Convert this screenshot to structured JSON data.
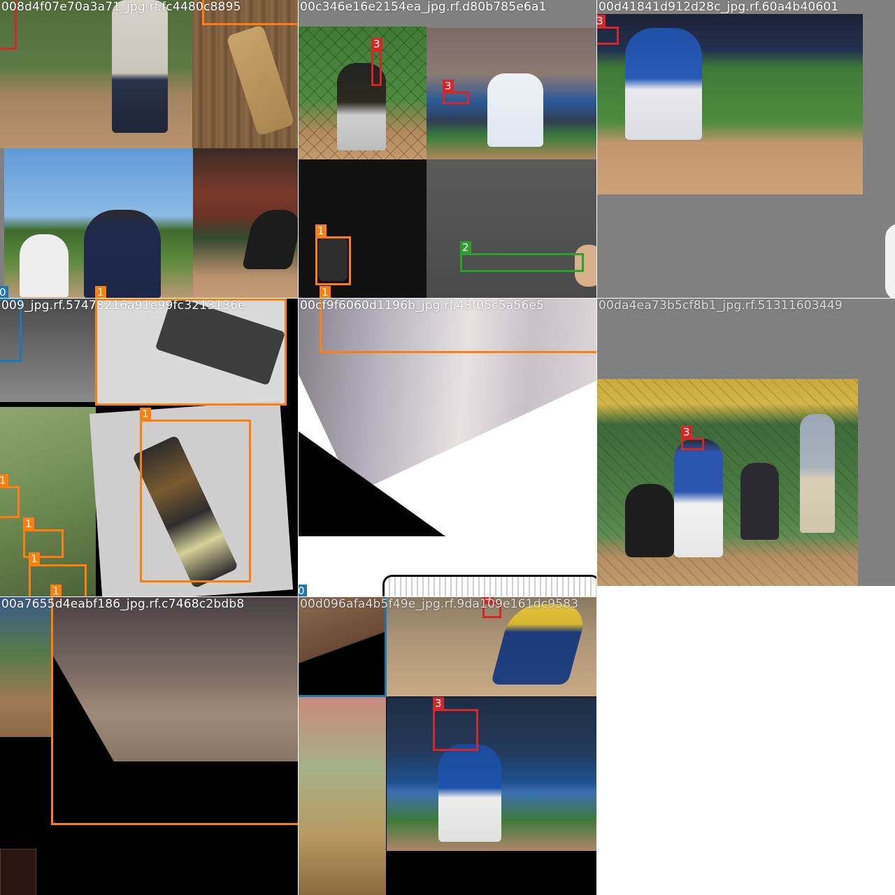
{
  "class_colors": {
    "0": "#1f77b4",
    "1": "#ff7f0e",
    "2": "#2ca02c",
    "3": "#d62728"
  },
  "tiles": [
    {
      "id": "tile-1",
      "label": "008d4f07e70a3a71_jpg.rf.fc4480c8895",
      "scene": "mosaic: baseball player legs, wooden board with strap, batter and catcher on field, umpire",
      "boxes": [
        {
          "cls": "3",
          "name": "bbox-class-3",
          "show_label": false
        },
        {
          "cls": "1",
          "name": "bbox-class-1",
          "show_label": false
        },
        {
          "cls": "0",
          "name": "bbox-class-0",
          "show_label": true
        },
        {
          "cls": "1",
          "name": "bbox-class-1-b",
          "show_label": true
        }
      ]
    },
    {
      "id": "tile-2",
      "label": "00c346e16e2154ea_jpg.rf.d80b785e6a1",
      "scene": "mosaic: batter behind net, kneeling batter, dark photo with glove, hand holding tool",
      "boxes": [
        {
          "cls": "3",
          "name": "bbox-class-3",
          "show_label": true
        },
        {
          "cls": "3",
          "name": "bbox-class-3-b",
          "show_label": true
        },
        {
          "cls": "1",
          "name": "bbox-class-1",
          "show_label": true
        },
        {
          "cls": "1",
          "name": "bbox-class-1-b",
          "show_label": true
        },
        {
          "cls": "2",
          "name": "bbox-class-2",
          "show_label": true
        }
      ]
    },
    {
      "id": "tile-3",
      "label": "00d41841d912d28c_jpg.rf.60a4b40601",
      "scene": "batter in blue jersey swinging on field",
      "boxes": [
        {
          "cls": "3",
          "name": "bbox-class-3",
          "show_label": true
        }
      ]
    },
    {
      "id": "tile-4",
      "label": "009_jpg.rf.57478216a91e99fc3213136e",
      "scene": "mosaic: rifle images, soldiers on grass slope",
      "boxes": [
        {
          "cls": "0",
          "name": "bbox-class-0",
          "show_label": false
        },
        {
          "cls": "1",
          "name": "bbox-class-1",
          "show_label": false
        },
        {
          "cls": "1",
          "name": "bbox-class-1-b",
          "show_label": true
        },
        {
          "cls": "1",
          "name": "bbox-class-1-c",
          "show_label": true
        },
        {
          "cls": "1",
          "name": "bbox-class-1-d",
          "show_label": true
        },
        {
          "cls": "1",
          "name": "bbox-class-1-e",
          "show_label": true
        },
        {
          "cls": "1",
          "name": "bbox-class-1-f",
          "show_label": true
        }
      ]
    },
    {
      "id": "tile-5",
      "label": "00cf9f6060d1196b_jpg.rf.43f05c5a56e5",
      "scene": "blurred rotated close-up with rifle outline below",
      "boxes": [
        {
          "cls": "1",
          "name": "bbox-class-1",
          "show_label": false
        },
        {
          "cls": "0",
          "name": "bbox-class-0",
          "show_label": true
        }
      ]
    },
    {
      "id": "tile-6",
      "label": "00da4ea73b5cf8b1_jpg.rf.51311603449",
      "scene": "youth batter, catcher and spectators behind fence",
      "boxes": [
        {
          "cls": "3",
          "name": "bbox-class-3",
          "show_label": true
        }
      ]
    },
    {
      "id": "tile-7",
      "label": "00a7655d4eabf186_jpg.rf.c7468c2bdb8",
      "scene": "rotated blurred crop on black background",
      "boxes": [
        {
          "cls": "1",
          "name": "bbox-class-1",
          "show_label": false
        }
      ]
    },
    {
      "id": "tile-8",
      "label": "00d096afa4b5f49e_jpg.rf.9da109e161dc9583",
      "scene": "mosaic: runner in yellow jersey, batter in stadium",
      "boxes": [
        {
          "cls": "3",
          "name": "bbox-class-3",
          "show_label": true
        },
        {
          "cls": "3",
          "name": "bbox-class-3-b",
          "show_label": true
        },
        {
          "cls": "0",
          "name": "bbox-class-0",
          "show_label": false
        }
      ]
    }
  ]
}
